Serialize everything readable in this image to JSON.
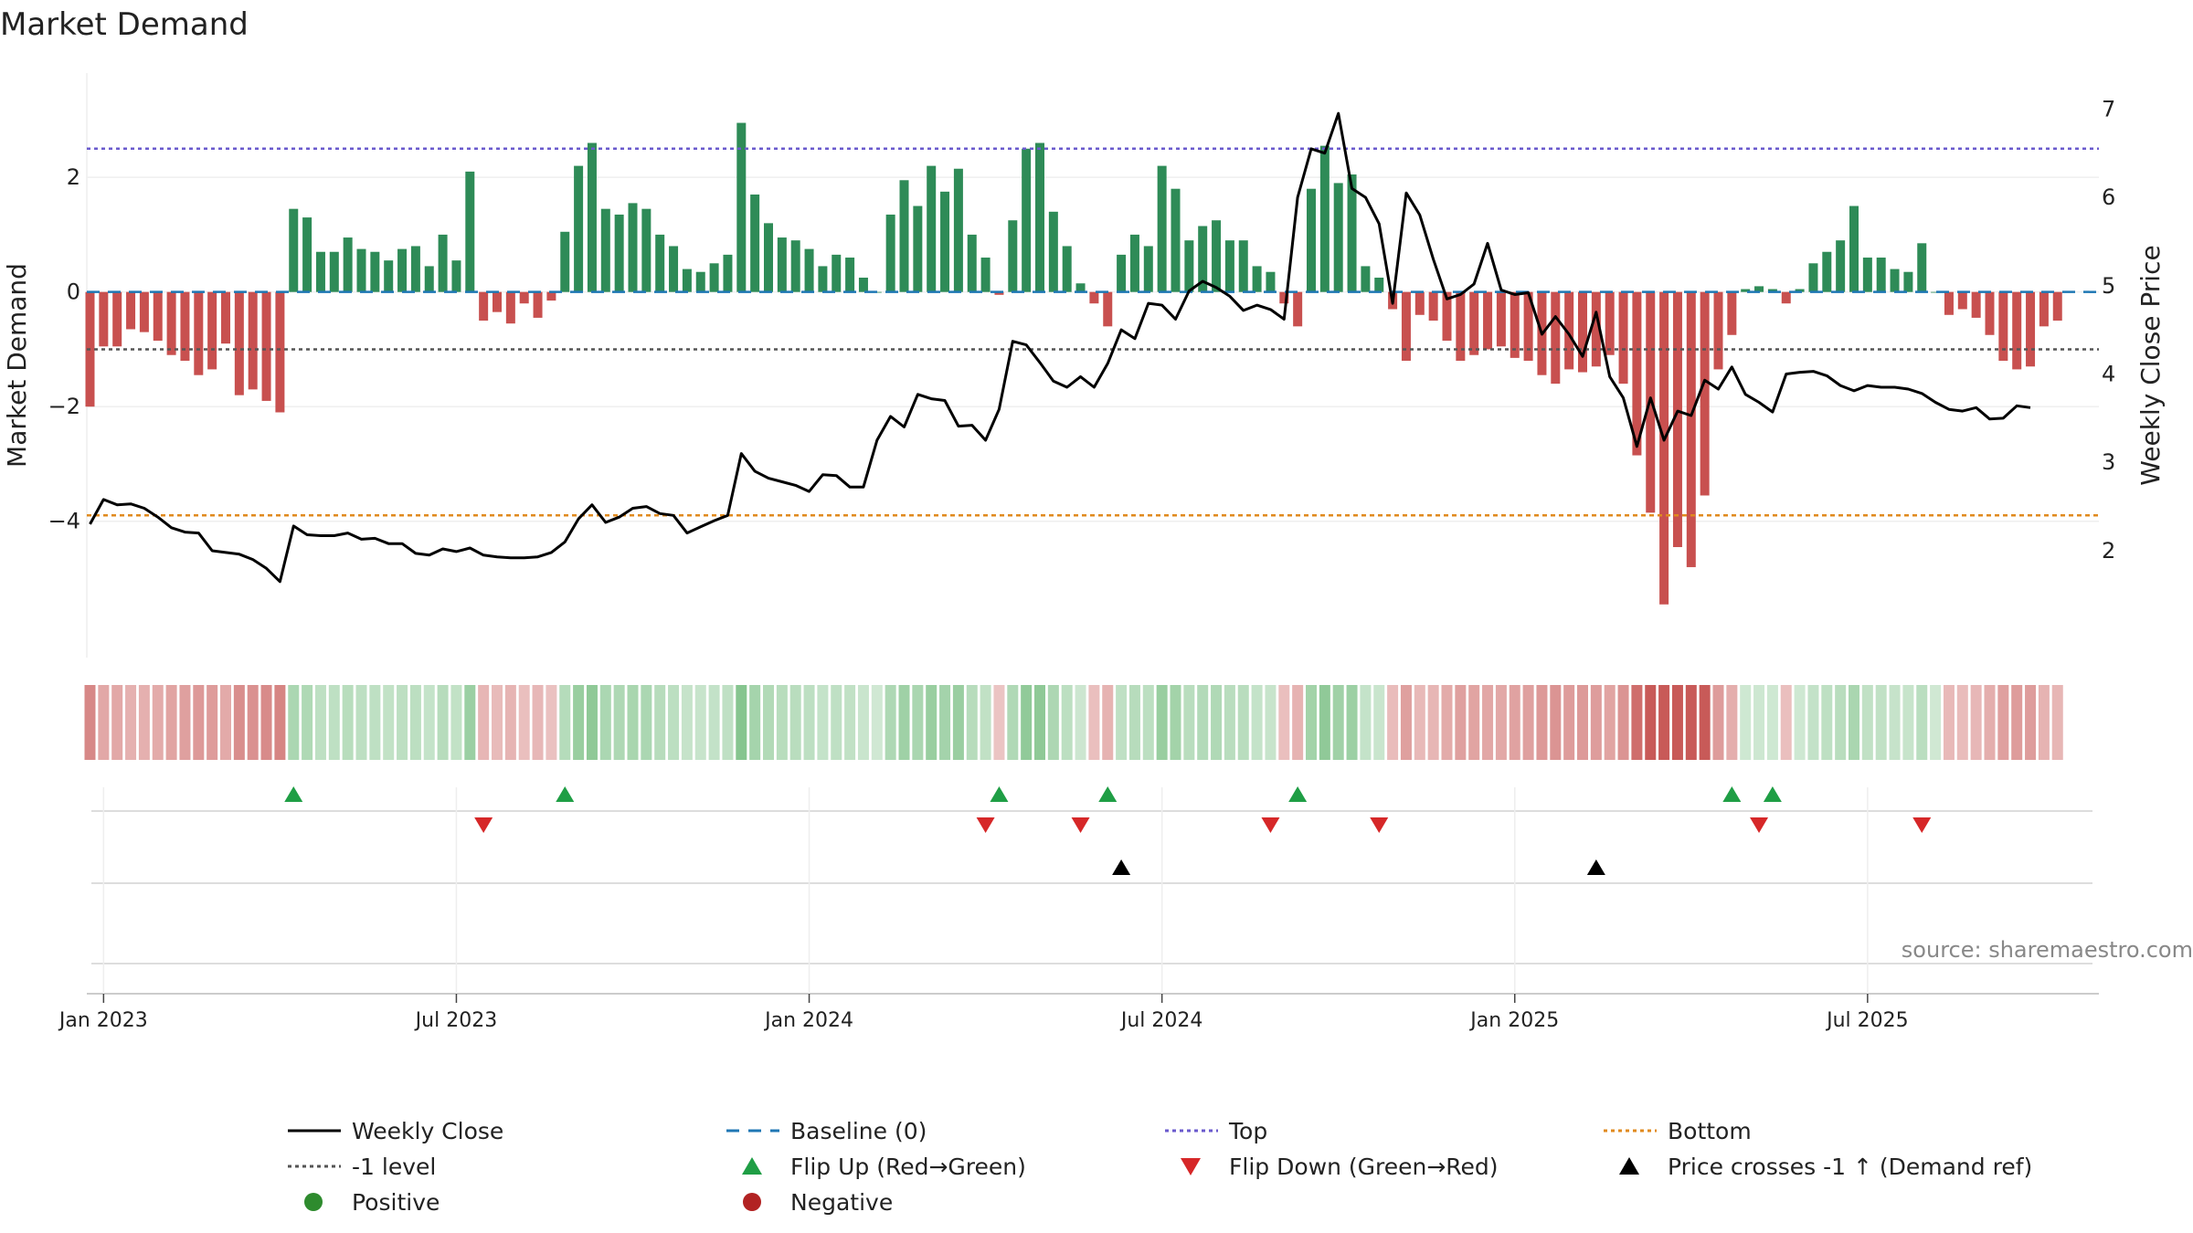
{
  "chart_data": {
    "type": "bar",
    "title": "Market Demand",
    "source": "source: sharemaestro.com",
    "y_left": {
      "label": "Market Demand",
      "ylim": [
        -5.9,
        3.5
      ],
      "ticks": [
        2,
        0,
        -2,
        -4
      ],
      "tick_labels": [
        "2",
        "0",
        "−2",
        "−4"
      ]
    },
    "y_right": {
      "label": "Weekly Close Price",
      "ylim": [
        1.1,
        7.2
      ],
      "ticks": [
        2,
        3,
        4,
        5,
        6,
        7
      ],
      "tick_labels": [
        "2",
        "3",
        "4",
        "5",
        "6",
        "7"
      ]
    },
    "reference_lines": {
      "top": 2.5,
      "level_minus1": -1.0,
      "bottom_price": 2.4,
      "baseline": 0
    },
    "x_axis": {
      "start_date": "2022-12-26",
      "ticks": [
        {
          "label": "Jan 2023",
          "week": 1
        },
        {
          "label": "Jul 2023",
          "week": 27
        },
        {
          "label": "Jan 2024",
          "week": 53
        },
        {
          "label": "Jul 2024",
          "week": 79
        },
        {
          "label": "Jan 2025",
          "week": 105
        },
        {
          "label": "Jul 2025",
          "week": 131
        }
      ]
    },
    "demand": [
      -2,
      -0.95,
      -0.95,
      -0.65,
      -0.7,
      -0.85,
      -1.1,
      -1.2,
      -1.45,
      -1.35,
      -0.9,
      -1.8,
      -1.7,
      -1.9,
      -2.1,
      1.45,
      1.3,
      0.7,
      0.7,
      0.95,
      0.75,
      0.7,
      0.55,
      0.75,
      0.8,
      0.45,
      1.0,
      0.55,
      2.1,
      -0.5,
      -0.35,
      -0.55,
      -0.2,
      -0.45,
      -0.15,
      1.05,
      2.2,
      2.6,
      1.45,
      1.35,
      1.55,
      1.45,
      1.0,
      0.8,
      0.4,
      0.35,
      0.5,
      0.65,
      2.95,
      1.7,
      1.2,
      0.95,
      0.9,
      0.75,
      0.45,
      0.65,
      0.6,
      0.25,
      0,
      1.35,
      1.95,
      1.5,
      2.2,
      1.75,
      2.15,
      1.0,
      0.6,
      -0.05,
      1.25,
      2.5,
      2.6,
      1.4,
      0.8,
      0.15,
      -0.2,
      -0.6,
      0.65,
      1.0,
      0.8,
      2.2,
      1.8,
      0.9,
      1.15,
      1.25,
      0.9,
      0.9,
      0.45,
      0.35,
      -0.2,
      -0.6,
      1.8,
      2.55,
      1.9,
      2.05,
      0.45,
      0.25,
      -0.3,
      -1.2,
      -0.4,
      -0.5,
      -0.85,
      -1.2,
      -1.1,
      -1.0,
      -0.95,
      -1.15,
      -1.2,
      -1.45,
      -1.6,
      -1.35,
      -1.4,
      -1.3,
      -1.1,
      -1.6,
      -2.85,
      -3.85,
      -5.45,
      -4.45,
      -4.8,
      -3.55,
      -1.35,
      -0.75,
      0.05,
      0.1,
      0.05,
      -0.2,
      0.05,
      0.5,
      0.7,
      0.9,
      1.5,
      0.6,
      0.6,
      0.4,
      0.35,
      0.85,
      0,
      -0.4,
      -0.3,
      -0.45,
      -0.75,
      -1.2,
      -1.35,
      -1.3,
      -0.6,
      -0.5
    ],
    "weekly_close": [
      2.3,
      2.58,
      2.52,
      2.53,
      2.48,
      2.38,
      2.26,
      2.21,
      2.2,
      2.0,
      1.98,
      1.96,
      1.9,
      1.8,
      1.65,
      2.28,
      2.18,
      2.17,
      2.17,
      2.2,
      2.13,
      2.14,
      2.08,
      2.08,
      1.97,
      1.95,
      2.02,
      1.99,
      2.03,
      1.95,
      1.93,
      1.92,
      1.92,
      1.93,
      1.98,
      2.1,
      2.36,
      2.52,
      2.32,
      2.38,
      2.48,
      2.5,
      2.42,
      2.4,
      2.2,
      2.27,
      2.34,
      2.4,
      3.1,
      2.9,
      2.82,
      2.78,
      2.74,
      2.67,
      2.86,
      2.85,
      2.72,
      2.72,
      3.25,
      3.52,
      3.4,
      3.77,
      3.72,
      3.7,
      3.41,
      3.42,
      3.25,
      3.6,
      4.37,
      4.33,
      4.13,
      3.92,
      3.85,
      3.97,
      3.85,
      4.12,
      4.5,
      4.4,
      4.8,
      4.78,
      4.62,
      4.94,
      5.05,
      4.98,
      4.88,
      4.72,
      4.78,
      4.73,
      4.62,
      6.0,
      6.55,
      6.5,
      6.95,
      6.1,
      6.0,
      5.7,
      4.8,
      6.05,
      5.8,
      5.3,
      4.85,
      4.9,
      5.02,
      5.48,
      4.95,
      4.9,
      4.92,
      4.45,
      4.65,
      4.45,
      4.2,
      4.7,
      3.97,
      3.73,
      3.18,
      3.73,
      3.25,
      3.58,
      3.53,
      3.93,
      3.83,
      4.08,
      3.77,
      3.68,
      3.57,
      4.0,
      4.02,
      4.03,
      3.98,
      3.87,
      3.81,
      3.87,
      3.85,
      3.85,
      3.83,
      3.78,
      3.68,
      3.6,
      3.58,
      3.62,
      3.49,
      3.5,
      3.64,
      3.62
    ],
    "flip_up_weeks": [
      15,
      35,
      67,
      75,
      89,
      121,
      124
    ],
    "flip_down_weeks": [
      29,
      66,
      73,
      87,
      95,
      123,
      135
    ],
    "price_cross_weeks": [
      76,
      111
    ],
    "legend": [
      {
        "label": "Weekly Close",
        "kind": "line-solid",
        "color": "#000000"
      },
      {
        "label": "Baseline (0)",
        "kind": "line-dash",
        "color": "#1f77b4"
      },
      {
        "label": "Top",
        "kind": "line-dot",
        "color": "#6a5acd"
      },
      {
        "label": "Bottom",
        "kind": "line-dot",
        "color": "#e08a1e"
      },
      {
        "label": "-1 level",
        "kind": "line-dot",
        "color": "#555555"
      },
      {
        "label": "Flip Up (Red→Green)",
        "kind": "tri-up",
        "color": "#1f9e45"
      },
      {
        "label": "Flip Down (Green→Red)",
        "kind": "tri-down",
        "color": "#d62728"
      },
      {
        "label": "Price crosses -1 ↑ (Demand ref)",
        "kind": "tri-up",
        "color": "#000000"
      },
      {
        "label": "Positive",
        "kind": "circle",
        "color": "#2e8b2e"
      },
      {
        "label": "Negative",
        "kind": "circle",
        "color": "#b22222"
      }
    ],
    "colors": {
      "positive_bar": "#2e8b57",
      "negative_bar": "#c8504f",
      "price_line": "#000000"
    }
  }
}
